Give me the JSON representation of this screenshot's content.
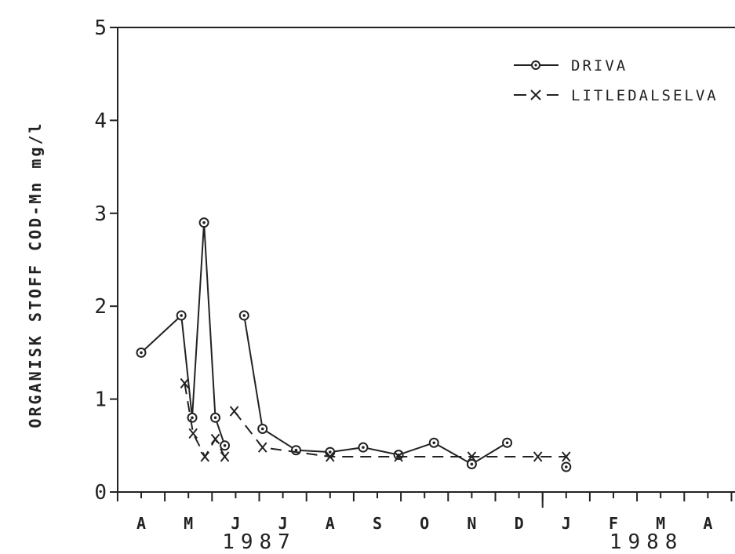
{
  "chart_data": {
    "type": "line",
    "ylabel": "ORGANISK STOFF COD-Mn mg/l",
    "ylim": [
      0,
      5
    ],
    "y_ticks": [
      "0",
      "1",
      "2",
      "3",
      "4",
      "5"
    ],
    "x_month_labels": [
      "A",
      "M",
      "J",
      "J",
      "A",
      "S",
      "O",
      "N",
      "D",
      "J",
      "F",
      "M",
      "A"
    ],
    "x_year_labels": [
      "1987",
      "1988"
    ],
    "legend_position": "top-right",
    "series": [
      {
        "name": "DRIVA",
        "marker": "circle",
        "style": "solid",
        "color": "#222222",
        "segments": [
          [
            [
              0.0,
              1.5
            ],
            [
              0.85,
              1.9
            ],
            [
              1.08,
              0.8
            ],
            [
              1.33,
              2.9
            ],
            [
              1.57,
              0.8
            ],
            [
              1.77,
              0.5
            ]
          ],
          [
            [
              2.18,
              1.9
            ],
            [
              2.57,
              0.68
            ],
            [
              3.28,
              0.45
            ],
            [
              4.0,
              0.43
            ],
            [
              4.7,
              0.48
            ],
            [
              5.45,
              0.4
            ],
            [
              6.2,
              0.53
            ],
            [
              7.0,
              0.3
            ],
            [
              7.75,
              0.53
            ]
          ]
        ],
        "isolated": [
          [
            9.0,
            0.27
          ]
        ]
      },
      {
        "name": "LITLEDALSELVA",
        "marker": "x",
        "style": "dashed",
        "color": "#222222",
        "segments": [
          [
            [
              0.92,
              1.17
            ],
            [
              1.1,
              0.63
            ],
            [
              1.35,
              0.38
            ],
            [
              1.57,
              0.57
            ],
            [
              1.77,
              0.38
            ]
          ],
          [
            [
              1.97,
              0.87
            ],
            [
              2.57,
              0.48
            ],
            [
              4.0,
              0.38
            ],
            [
              5.45,
              0.38
            ],
            [
              7.0,
              0.38
            ],
            [
              8.4,
              0.38
            ],
            [
              9.0,
              0.38
            ]
          ]
        ],
        "isolated": []
      }
    ]
  }
}
